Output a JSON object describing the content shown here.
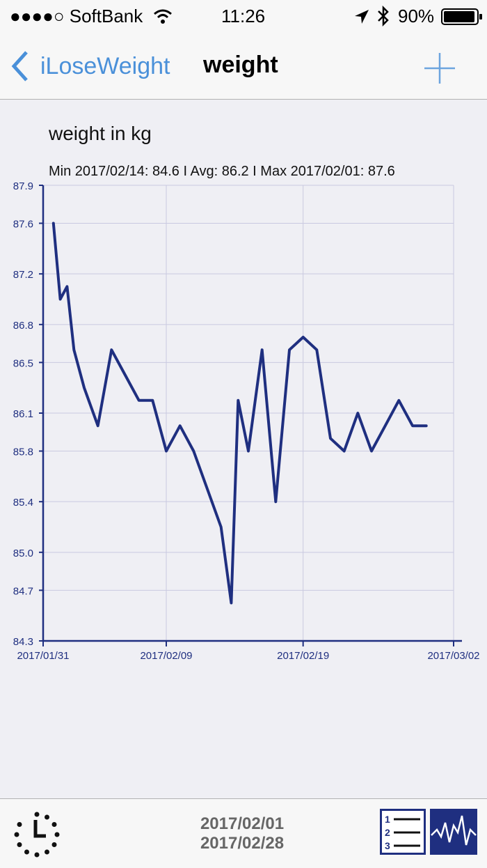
{
  "status_bar": {
    "carrier": "●●●●○ SoftBank",
    "time": "11:26",
    "battery": "90%"
  },
  "nav": {
    "back_label": "iLoseWeight",
    "title": "weight"
  },
  "chart_data": {
    "type": "line",
    "title": "weight in kg",
    "subtitle": "Min 2017/02/14: 84.6  I  Avg: 86.2  I  Max 2017/02/01: 87.6",
    "xlabel": "",
    "ylabel": "",
    "xlim": [
      "2017/01/31",
      "2017/03/02"
    ],
    "ylim": [
      84.3,
      87.9
    ],
    "x_ticks": [
      "2017/01/31",
      "2017/02/09",
      "2017/02/19",
      "2017/03/02"
    ],
    "y_ticks": [
      "84.3",
      "84.7",
      "85.0",
      "85.4",
      "85.8",
      "86.1",
      "86.5",
      "86.8",
      "87.2",
      "87.6",
      "87.9"
    ],
    "grid": true,
    "color": "#1f2f80",
    "series": [
      {
        "x": [
          "2017/02/01",
          "2017/02/01",
          "2017/02/02",
          "2017/02/02",
          "2017/02/03",
          "2017/02/04",
          "2017/02/05",
          "2017/02/06",
          "2017/02/07",
          "2017/02/08",
          "2017/02/09",
          "2017/02/10",
          "2017/02/11",
          "2017/02/12",
          "2017/02/13",
          "2017/02/14",
          "2017/02/14",
          "2017/02/15",
          "2017/02/16",
          "2017/02/17",
          "2017/02/18",
          "2017/02/19",
          "2017/02/20",
          "2017/02/21",
          "2017/02/22",
          "2017/02/23",
          "2017/02/24",
          "2017/02/25",
          "2017/02/26",
          "2017/02/27",
          "2017/02/28"
        ],
        "y": [
          87.6,
          87.0,
          87.1,
          86.6,
          86.3,
          86.0,
          86.6,
          86.4,
          86.2,
          86.2,
          85.8,
          86.0,
          85.8,
          85.5,
          85.2,
          84.6,
          86.2,
          85.8,
          86.6,
          85.4,
          86.6,
          86.7,
          86.6,
          85.9,
          85.8,
          86.1,
          85.8,
          86.0,
          86.2,
          86.0,
          86.0
        ]
      }
    ]
  },
  "footer": {
    "range_start": "2017/02/01",
    "range_end": "2017/02/28"
  }
}
